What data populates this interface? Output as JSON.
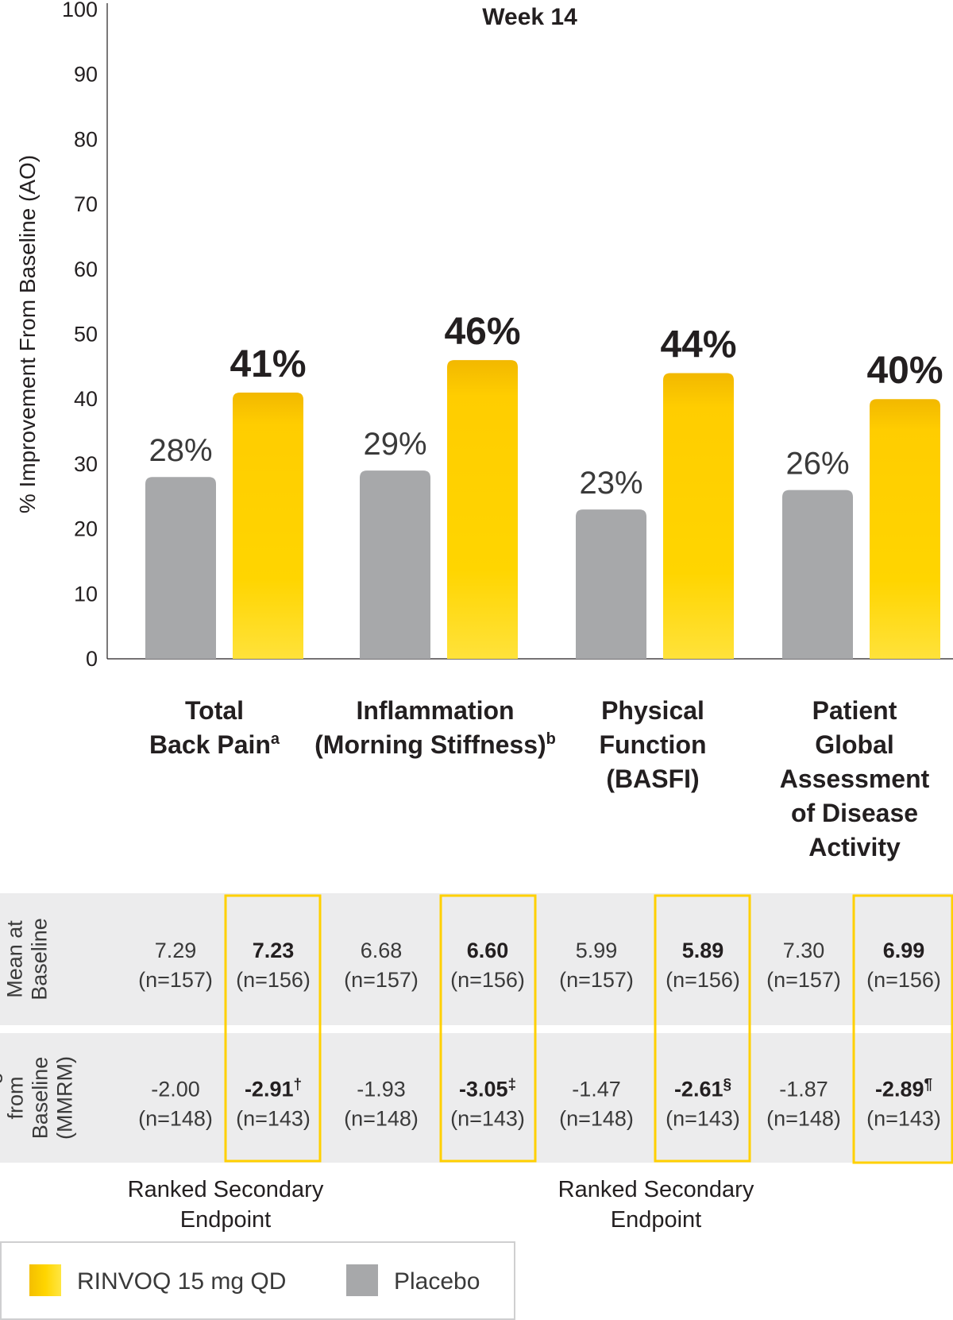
{
  "chart_data": {
    "type": "bar",
    "title": "Week 14",
    "ylabel": "% Improvement From Baseline (AO)",
    "ylim": [
      0,
      100
    ],
    "yticks": [
      0,
      10,
      20,
      30,
      40,
      50,
      60,
      70,
      80,
      90,
      100
    ],
    "categories": [
      {
        "lines": [
          "Total",
          "Back Pain"
        ],
        "sup": "a"
      },
      {
        "lines": [
          "Inflammation",
          "(Morning Stiffness)"
        ],
        "sup": "b"
      },
      {
        "lines": [
          "Physical",
          "Function",
          "(BASFI)"
        ],
        "sup": ""
      },
      {
        "lines": [
          "Patient",
          "Global",
          "Assessment",
          "of Disease",
          "Activity"
        ],
        "sup": ""
      }
    ],
    "series": [
      {
        "name": "Placebo",
        "values": [
          28,
          29,
          23,
          26
        ],
        "labels": [
          "28%",
          "29%",
          "23%",
          "26%"
        ],
        "color": "#a7a8aa"
      },
      {
        "name": "RINVOQ 15 mg QD",
        "values": [
          41,
          46,
          44,
          40
        ],
        "labels": [
          "41%",
          "46%",
          "44%",
          "40%"
        ],
        "color": "#ffd000"
      }
    ],
    "grid": false,
    "legend_position": "bottom-left"
  },
  "table": {
    "rows": [
      {
        "header": [
          "Mean at",
          "Baseline"
        ],
        "cells": [
          {
            "value": "7.29",
            "sup": "",
            "n": "(n=157)",
            "bold": false
          },
          {
            "value": "7.23",
            "sup": "",
            "n": "(n=156)",
            "bold": true
          },
          {
            "value": "6.68",
            "sup": "",
            "n": "(n=157)",
            "bold": false
          },
          {
            "value": "6.60",
            "sup": "",
            "n": "(n=156)",
            "bold": true
          },
          {
            "value": "5.99",
            "sup": "",
            "n": "(n=157)",
            "bold": false
          },
          {
            "value": "5.89",
            "sup": "",
            "n": "(n=156)",
            "bold": true
          },
          {
            "value": "7.30",
            "sup": "",
            "n": "(n=157)",
            "bold": false
          },
          {
            "value": "6.99",
            "sup": "",
            "n": "(n=156)",
            "bold": true
          }
        ]
      },
      {
        "header": [
          "Change",
          "from",
          "Baseline",
          "(MMRM)"
        ],
        "cells": [
          {
            "value": "-2.00",
            "sup": "",
            "n": "(n=148)",
            "bold": false
          },
          {
            "value": "-2.91",
            "sup": "†",
            "n": "(n=143)",
            "bold": true
          },
          {
            "value": "-1.93",
            "sup": "",
            "n": "(n=148)",
            "bold": false
          },
          {
            "value": "-3.05",
            "sup": "‡",
            "n": "(n=143)",
            "bold": true
          },
          {
            "value": "-1.47",
            "sup": "",
            "n": "(n=148)",
            "bold": false
          },
          {
            "value": "-2.61",
            "sup": "§",
            "n": "(n=143)",
            "bold": true
          },
          {
            "value": "-1.87",
            "sup": "",
            "n": "(n=148)",
            "bold": false
          },
          {
            "value": "-2.89",
            "sup": "¶",
            "n": "(n=143)",
            "bold": true
          }
        ]
      }
    ]
  },
  "ranked_notes": [
    [
      "Ranked Secondary",
      "Endpoint"
    ],
    [
      "Ranked Secondary",
      "Endpoint"
    ]
  ],
  "legend": [
    {
      "label": "RINVOQ 15 mg QD",
      "color": "#ffd000"
    },
    {
      "label": "Placebo",
      "color": "#a7a8aa"
    }
  ]
}
